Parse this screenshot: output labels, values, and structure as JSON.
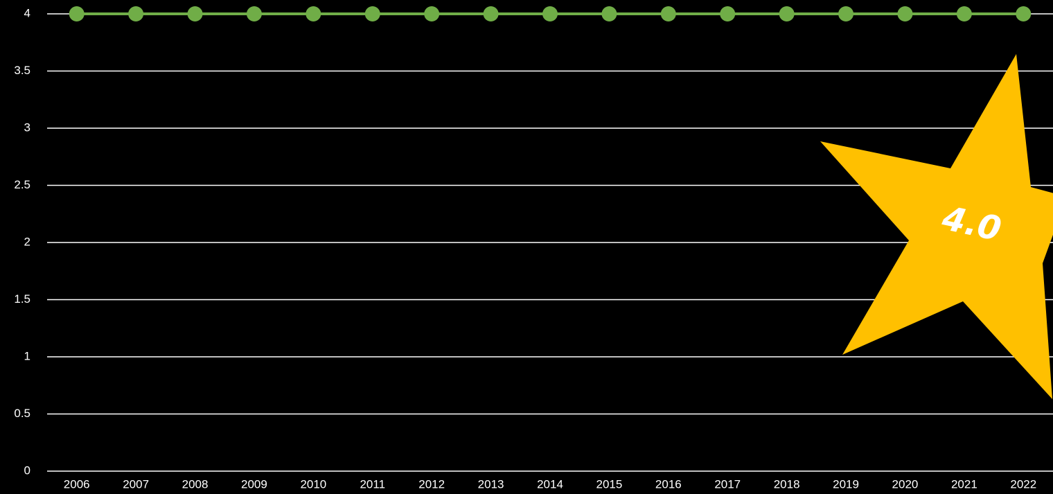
{
  "chart_data": {
    "type": "line",
    "categories": [
      "2006",
      "2007",
      "2008",
      "2009",
      "2010",
      "2011",
      "2012",
      "2013",
      "2014",
      "2015",
      "2016",
      "2017",
      "2018",
      "2019",
      "2020",
      "2021",
      "2022"
    ],
    "series": [
      {
        "values": [
          4,
          4,
          4,
          4,
          4,
          4,
          4,
          4,
          4,
          4,
          4,
          4,
          4,
          4,
          4,
          4,
          4
        ],
        "color": "#70ad47"
      }
    ],
    "ylim": [
      0,
      4
    ],
    "yticks": [
      "0",
      "0.5",
      "1",
      "1.5",
      "2",
      "2.5",
      "3",
      "3.5",
      "4"
    ],
    "grid": true,
    "background": "#000000",
    "gridline_color": "#ffffff",
    "annotation": {
      "text": "4.0",
      "shape": "star",
      "color": "#ffc000",
      "text_color": "#ffffff"
    }
  }
}
